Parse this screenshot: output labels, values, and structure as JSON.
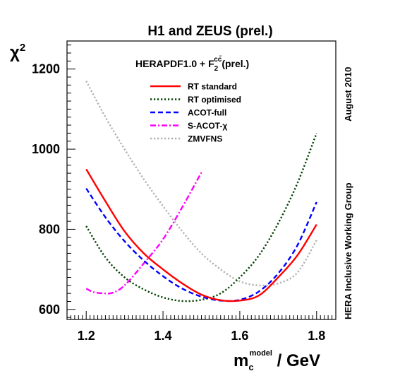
{
  "chart_data": {
    "type": "line",
    "title": "H1 and ZEUS (prel.)",
    "subtitle": {
      "main": "HERAPDF1.0 + F",
      "sub": "2",
      "sup": "cc̄",
      "tail": "(prel.)"
    },
    "xlabel": {
      "main": "m",
      "sub": "c",
      "sup": "model",
      "tail": " / GeV"
    },
    "ylabel": {
      "main": "χ",
      "sup": "2"
    },
    "side_labels": [
      "August 2010",
      "HERA Inclusive Working Group"
    ],
    "xlim": [
      1.15,
      1.85
    ],
    "ylim": [
      575,
      1270
    ],
    "xticks": [
      "1.2",
      "1.4",
      "1.6",
      "1.8"
    ],
    "yticks": [
      "600",
      "800",
      "1000",
      "1200"
    ],
    "grid": false,
    "legend_position": "top",
    "series": [
      {
        "name": "RT standard",
        "color": "#ff0000",
        "dash": "solid",
        "x": [
          1.2,
          1.25,
          1.3,
          1.35,
          1.4,
          1.45,
          1.5,
          1.55,
          1.6,
          1.65,
          1.7,
          1.75,
          1.8
        ],
        "y": [
          950,
          870,
          795,
          740,
          700,
          665,
          637,
          623,
          622,
          635,
          680,
          735,
          812
        ]
      },
      {
        "name": "RT optimised",
        "color": "#004000",
        "dash": "dotted",
        "x": [
          1.2,
          1.25,
          1.3,
          1.35,
          1.4,
          1.45,
          1.5,
          1.55,
          1.6,
          1.65,
          1.7,
          1.75,
          1.8
        ],
        "y": [
          808,
          730,
          680,
          650,
          630,
          621,
          624,
          640,
          680,
          735,
          815,
          915,
          1040
        ]
      },
      {
        "name": "ACOT-full",
        "color": "#0000ff",
        "dash": "dashed",
        "x": [
          1.2,
          1.25,
          1.3,
          1.35,
          1.4,
          1.45,
          1.5,
          1.55,
          1.6,
          1.65,
          1.7,
          1.75,
          1.8
        ],
        "y": [
          902,
          830,
          770,
          722,
          683,
          652,
          632,
          622,
          624,
          645,
          690,
          760,
          868
        ]
      },
      {
        "name": "S-ACOT-χ",
        "color": "#ff00ff",
        "dash": "dashdot",
        "x": [
          1.2,
          1.22,
          1.25,
          1.27,
          1.3,
          1.35,
          1.4,
          1.45,
          1.5
        ],
        "y": [
          652,
          643,
          640,
          642,
          660,
          715,
          775,
          855,
          942
        ]
      },
      {
        "name": "ZMVFNS",
        "color": "#b0b0b0",
        "dash": "dotted",
        "x": [
          1.2,
          1.25,
          1.3,
          1.35,
          1.4,
          1.45,
          1.5,
          1.55,
          1.6,
          1.65,
          1.7,
          1.75,
          1.8
        ],
        "y": [
          1170,
          1080,
          1000,
          925,
          858,
          795,
          740,
          700,
          670,
          660,
          665,
          692,
          773
        ]
      }
    ]
  }
}
